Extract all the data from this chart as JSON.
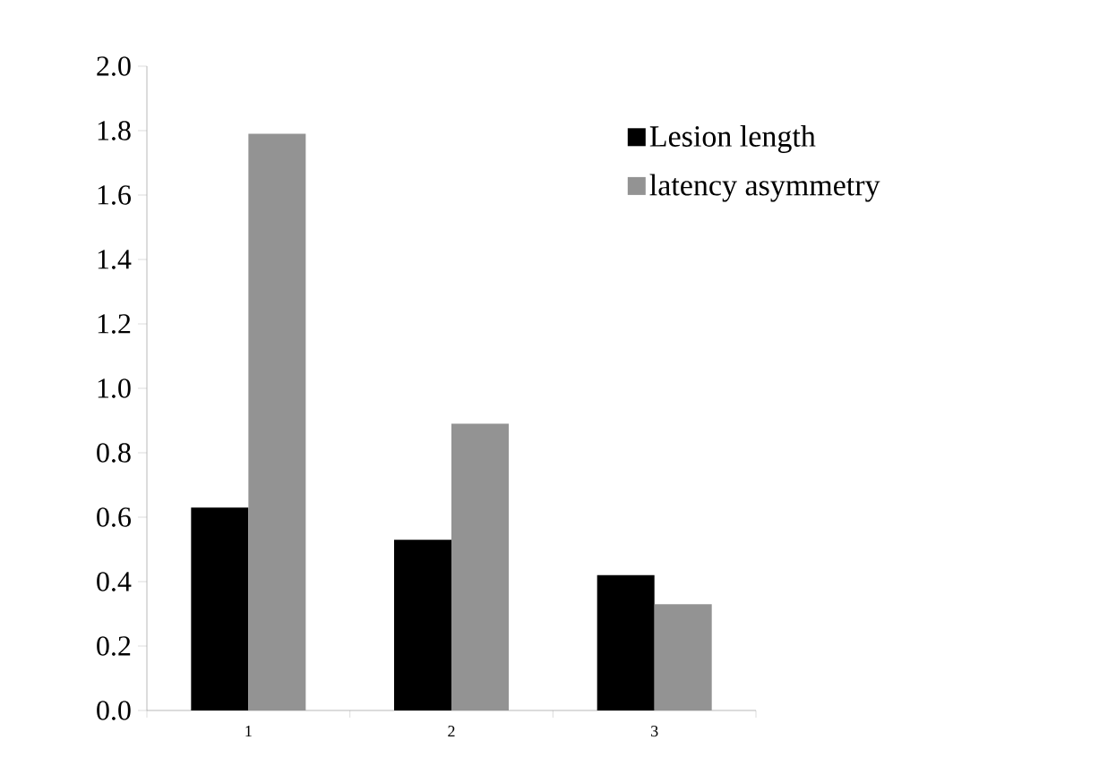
{
  "chart_data": {
    "type": "bar",
    "categories": [
      "1",
      "2",
      "3"
    ],
    "series": [
      {
        "name": "Lesion length",
        "color": "#000000",
        "values": [
          0.63,
          0.53,
          0.42
        ]
      },
      {
        "name": "latency asymmetry",
        "color": "#939393",
        "values": [
          1.79,
          0.89,
          0.33
        ]
      }
    ],
    "ylim": [
      0,
      2.0
    ],
    "yticks": [
      {
        "value": 0,
        "label": "0.0"
      },
      {
        "value": 0.2,
        "label": "0.2"
      },
      {
        "value": 0.4,
        "label": "0.4"
      },
      {
        "value": 0.6,
        "label": "0.6"
      },
      {
        "value": 0.8,
        "label": "0.8"
      },
      {
        "value": 1.0,
        "label": "1.0"
      },
      {
        "value": 1.2,
        "label": "1.2"
      },
      {
        "value": 1.4,
        "label": "1.4"
      },
      {
        "value": 1.6,
        "label": "1.6"
      },
      {
        "value": 1.8,
        "label": "1.8"
      },
      {
        "value": 2.0,
        "label": "2.0"
      }
    ],
    "grid": false,
    "legend": "top right"
  }
}
